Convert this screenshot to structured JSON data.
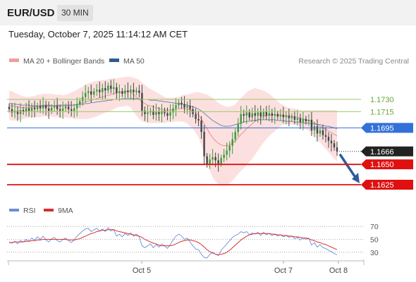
{
  "header": {
    "pair": "EUR/USD",
    "timeframe": "30 MIN"
  },
  "datetime": "Tuesday, October 7, 2025 11:14:12 AM CET",
  "legend": {
    "ma20": "MA 20 + Bollinger Bands",
    "ma50": "MA 50",
    "copyright": "Research © 2025 Trading Central"
  },
  "rsi_legend": {
    "rsi": "RSI",
    "ma9": "9MA"
  },
  "colors": {
    "up": "#3a9a3a",
    "down": "#444444",
    "bollinger": "#fbd5d5",
    "ma20": "#e89090",
    "ma50": "#6f8aa8",
    "rsi": "#6a8ed8",
    "rsi_ma": "#d93030",
    "resistance": "#9bc96a",
    "pivot": "#3370d8",
    "support": "#e01010"
  },
  "chart_data": {
    "type": "candlestick",
    "x_ticks": [
      "Oct 5",
      "Oct 7",
      "Oct 8"
    ],
    "y_range": [
      1.1605,
      1.177
    ],
    "levels": [
      {
        "value": 1.173,
        "label": "1.1730",
        "kind": "resistance"
      },
      {
        "value": 1.1715,
        "label": "1.1715",
        "kind": "resistance"
      },
      {
        "value": 1.1695,
        "label": "1.1695",
        "kind": "pivot"
      },
      {
        "value": 1.1666,
        "label": "1.1666",
        "kind": "last"
      },
      {
        "value": 1.165,
        "label": "1.1650",
        "kind": "support"
      },
      {
        "value": 1.1625,
        "label": "1.1625",
        "kind": "support"
      }
    ],
    "close": [
      1.1718,
      1.1714,
      1.1716,
      1.1712,
      1.1717,
      1.1715,
      1.1719,
      1.1716,
      1.172,
      1.1718,
      1.1722,
      1.1719,
      1.1723,
      1.1719,
      1.1716,
      1.172,
      1.1722,
      1.1718,
      1.1716,
      1.1719,
      1.1721,
      1.1718,
      1.1716,
      1.1719,
      1.1724,
      1.1728,
      1.1733,
      1.1738,
      1.174,
      1.1736,
      1.174,
      1.1742,
      1.1739,
      1.1744,
      1.1741,
      1.1747,
      1.1743,
      1.1745,
      1.1738,
      1.174,
      1.1737,
      1.1741,
      1.1739,
      1.1742,
      1.1739,
      1.1741,
      1.1738,
      1.1716,
      1.1712,
      1.1714,
      1.1716,
      1.1711,
      1.1715,
      1.1712,
      1.1716,
      1.1713,
      1.171,
      1.1714,
      1.1719,
      1.1723,
      1.1726,
      1.1724,
      1.172,
      1.1722,
      1.1718,
      1.1712,
      1.1706,
      1.1704,
      1.169,
      1.166,
      1.165,
      1.1656,
      1.1659,
      1.1655,
      1.1651,
      1.1658,
      1.1662,
      1.1667,
      1.1673,
      1.1681,
      1.169,
      1.17,
      1.1712,
      1.171,
      1.1714,
      1.1708,
      1.1713,
      1.171,
      1.1714,
      1.1709,
      1.1715,
      1.171,
      1.1713,
      1.171,
      1.1712,
      1.1709,
      1.1711,
      1.1708,
      1.171,
      1.1707,
      1.1709,
      1.1705,
      1.1707,
      1.1702,
      1.1706,
      1.1703,
      1.1705,
      1.1692,
      1.1697,
      1.1688,
      1.1692,
      1.1686,
      1.1684,
      1.1679,
      1.1676,
      1.1671,
      1.1666
    ],
    "ma20": [
      1.1723,
      1.1722,
      1.1721,
      1.1721,
      1.172,
      1.172,
      1.172,
      1.172,
      1.1721,
      1.1721,
      1.1722,
      1.1722,
      1.1723,
      1.1723,
      1.1723,
      1.1723,
      1.1722,
      1.1722,
      1.1722,
      1.1721,
      1.1722,
      1.1722,
      1.1723,
      1.1723,
      1.1724,
      1.1725,
      1.1726,
      1.1727,
      1.1728,
      1.1729,
      1.173,
      1.1731,
      1.1732,
      1.1733,
      1.1734,
      1.1735,
      1.1736,
      1.1737,
      1.1738,
      1.1739,
      1.1739,
      1.174,
      1.174,
      1.1739,
      1.1736,
      1.1733,
      1.173,
      1.1727,
      1.1725,
      1.1723,
      1.1722,
      1.1721,
      1.172,
      1.1719,
      1.1718,
      1.1717,
      1.1717,
      1.1717,
      1.1717,
      1.1718,
      1.1718,
      1.1719,
      1.1719,
      1.1718,
      1.1717,
      1.1716,
      1.1714,
      1.1711,
      1.1706,
      1.17,
      1.1694,
      1.1688,
      1.1683,
      1.1679,
      1.1676,
      1.1674,
      1.1673,
      1.1673,
      1.1674,
      1.1676,
      1.1679,
      1.1683,
      1.1687,
      1.169,
      1.1694,
      1.1697,
      1.17,
      1.1703,
      1.1705,
      1.1707,
      1.1709,
      1.171,
      1.1711,
      1.1711,
      1.1711,
      1.1711,
      1.1711,
      1.1711,
      1.171,
      1.171,
      1.1709,
      1.1709,
      1.1708,
      1.1707,
      1.1706,
      1.1705,
      1.1704,
      1.1703,
      1.1701,
      1.1699,
      1.1697,
      1.1695,
      1.1693,
      1.1691,
      1.1689,
      1.1687,
      1.1685
    ],
    "bb_width": [
      0.0018,
      0.0018,
      0.0017,
      0.0016,
      0.0015,
      0.0014,
      0.0013,
      0.0013,
      0.0013,
      0.0013,
      0.0014,
      0.0014,
      0.0014,
      0.0014,
      0.0014,
      0.0014,
      0.0014,
      0.0014,
      0.0014,
      0.0014,
      0.0014,
      0.0015,
      0.0016,
      0.0017,
      0.0018,
      0.0019,
      0.002,
      0.0021,
      0.0022,
      0.0022,
      0.0022,
      0.0022,
      0.0021,
      0.0021,
      0.002,
      0.002,
      0.002,
      0.0019,
      0.0018,
      0.0018,
      0.0018,
      0.0018,
      0.0018,
      0.0019,
      0.0021,
      0.0023,
      0.0024,
      0.0024,
      0.0023,
      0.0022,
      0.0021,
      0.002,
      0.0019,
      0.0018,
      0.0017,
      0.0016,
      0.0015,
      0.0015,
      0.0015,
      0.0015,
      0.0015,
      0.0016,
      0.0017,
      0.0018,
      0.002,
      0.0022,
      0.0025,
      0.0028,
      0.0032,
      0.0037,
      0.0042,
      0.0046,
      0.0049,
      0.005,
      0.005,
      0.005,
      0.0049,
      0.0048,
      0.0047,
      0.0046,
      0.0045,
      0.0045,
      0.0045,
      0.0045,
      0.0045,
      0.0044,
      0.0043,
      0.0041,
      0.0038,
      0.0035,
      0.0032,
      0.0029,
      0.0026,
      0.0023,
      0.002,
      0.0017,
      0.0014,
      0.0012,
      0.0011,
      0.001,
      0.001,
      0.001,
      0.001,
      0.001,
      0.0011,
      0.0012,
      0.0013,
      0.0014,
      0.0016,
      0.0018,
      0.002,
      0.0022,
      0.0024,
      0.0026,
      0.0028,
      0.003,
      0.0032
    ],
    "ma50": [
      1.1725,
      1.1725,
      1.1724,
      1.1724,
      1.1723,
      1.1723,
      1.1723,
      1.1723,
      1.1722,
      1.1722,
      1.1722,
      1.1722,
      1.1722,
      1.1722,
      1.1722,
      1.1722,
      1.1722,
      1.1723,
      1.1723,
      1.1723,
      1.1723,
      1.1723,
      1.1723,
      1.1723,
      1.1724,
      1.1724,
      1.1724,
      1.1725,
      1.1725,
      1.1726,
      1.1726,
      1.1727,
      1.1727,
      1.1728,
      1.1728,
      1.1729,
      1.1729,
      1.173,
      1.173,
      1.173,
      1.1731,
      1.1731,
      1.1731,
      1.1731,
      1.1731,
      1.1731,
      1.1731,
      1.173,
      1.173,
      1.173,
      1.1729,
      1.1729,
      1.1729,
      1.1728,
      1.1728,
      1.1727,
      1.1727,
      1.1726,
      1.1726,
      1.1725,
      1.1725,
      1.1724,
      1.1724,
      1.1723,
      1.1722,
      1.1721,
      1.172,
      1.1718,
      1.1716,
      1.1713,
      1.171,
      1.1707,
      1.1704,
      1.1702,
      1.17,
      1.1698,
      1.1697,
      1.1697,
      1.1697,
      1.1698,
      1.1699,
      1.17,
      1.1701,
      1.1702,
      1.1703,
      1.1703,
      1.1704,
      1.1704,
      1.1705,
      1.1705,
      1.1705,
      1.1705,
      1.1705,
      1.1705,
      1.1705,
      1.1704,
      1.1704,
      1.1704,
      1.1703,
      1.1703,
      1.1703,
      1.1702,
      1.1702,
      1.1702,
      1.1701,
      1.1701,
      1.1701,
      1.17,
      1.17,
      1.1699,
      1.1699,
      1.1698,
      1.1697,
      1.1697,
      1.1696,
      1.1695,
      1.1694
    ],
    "rsi": {
      "range": [
        20,
        80
      ],
      "levels": [
        70,
        50,
        30
      ],
      "level_labels": [
        "70",
        "50",
        "30"
      ],
      "values": [
        46,
        44,
        47,
        43,
        48,
        46,
        50,
        47,
        52,
        49,
        54,
        50,
        55,
        49,
        46,
        51,
        53,
        48,
        46,
        50,
        52,
        48,
        45,
        49,
        55,
        59,
        63,
        66,
        67,
        62,
        65,
        67,
        63,
        66,
        62,
        68,
        63,
        65,
        55,
        58,
        54,
        59,
        56,
        60,
        55,
        58,
        54,
        40,
        37,
        40,
        43,
        37,
        42,
        38,
        43,
        40,
        36,
        42,
        49,
        55,
        58,
        55,
        50,
        52,
        46,
        40,
        35,
        34,
        27,
        22,
        21,
        27,
        30,
        27,
        25,
        33,
        38,
        43,
        48,
        53,
        56,
        58,
        62,
        60,
        62,
        57,
        60,
        58,
        61,
        56,
        61,
        57,
        59,
        56,
        58,
        55,
        57,
        54,
        56,
        53,
        55,
        51,
        53,
        49,
        52,
        50,
        52,
        41,
        45,
        38,
        42,
        37,
        36,
        33,
        31,
        28,
        26
      ],
      "ma9": [
        45,
        45,
        46,
        46,
        46,
        46,
        47,
        47,
        48,
        48,
        49,
        49,
        50,
        50,
        50,
        50,
        50,
        50,
        50,
        50,
        50,
        49,
        49,
        49,
        50,
        51,
        53,
        55,
        57,
        59,
        60,
        62,
        63,
        64,
        64,
        65,
        65,
        65,
        63,
        62,
        61,
        60,
        59,
        58,
        57,
        56,
        55,
        53,
        50,
        48,
        46,
        44,
        43,
        41,
        40,
        40,
        40,
        40,
        41,
        43,
        45,
        47,
        48,
        49,
        49,
        48,
        47,
        45,
        42,
        38,
        34,
        31,
        29,
        27,
        26,
        27,
        28,
        30,
        33,
        37,
        41,
        45,
        49,
        52,
        55,
        57,
        58,
        59,
        59,
        59,
        59,
        59,
        59,
        58,
        58,
        57,
        57,
        56,
        56,
        55,
        55,
        54,
        54,
        53,
        52,
        52,
        51,
        49,
        48,
        46,
        45,
        43,
        42,
        40,
        38,
        36,
        34
      ]
    }
  }
}
